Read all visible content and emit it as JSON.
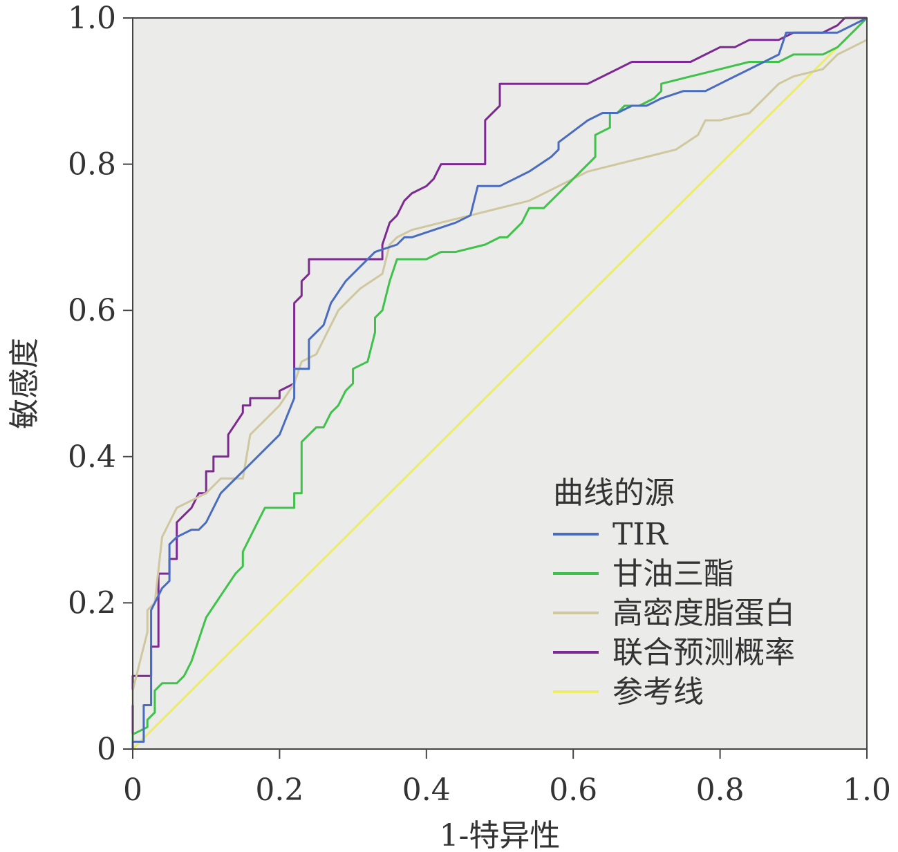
{
  "chart_data": {
    "type": "line",
    "title": "",
    "xlabel": "1-特异性",
    "ylabel": "敏感度",
    "xlim": [
      0,
      1
    ],
    "ylim": [
      0,
      1
    ],
    "x_ticks": [
      "0",
      "0.2",
      "0.4",
      "0.6",
      "0.8",
      "1.0"
    ],
    "y_ticks": [
      "0",
      "0.2",
      "0.4",
      "0.6",
      "0.8",
      "1.0"
    ],
    "grid": false,
    "background_color": "#ebebea",
    "legend": {
      "title": "曲线的源",
      "placement": "bottom-right"
    },
    "series": [
      {
        "name": "TIR",
        "color": "#4a6cc0",
        "x": [
          0,
          0,
          0.015,
          0.015,
          0.025,
          0.025,
          0.035,
          0.04,
          0.05,
          0.05,
          0.06,
          0.08,
          0.09,
          0.1,
          0.12,
          0.14,
          0.16,
          0.18,
          0.2,
          0.22,
          0.22,
          0.24,
          0.24,
          0.26,
          0.27,
          0.29,
          0.31,
          0.33,
          0.36,
          0.37,
          0.38,
          0.41,
          0.44,
          0.46,
          0.47,
          0.48,
          0.5,
          0.52,
          0.54,
          0.57,
          0.58,
          0.58,
          0.62,
          0.64,
          0.66,
          0.68,
          0.7,
          0.72,
          0.75,
          0.78,
          0.8,
          0.82,
          0.84,
          0.86,
          0.88,
          0.89,
          0.9,
          0.92,
          0.96,
          0.98,
          1.0
        ],
        "y": [
          0,
          0.01,
          0.01,
          0.06,
          0.06,
          0.19,
          0.21,
          0.22,
          0.23,
          0.28,
          0.29,
          0.3,
          0.3,
          0.31,
          0.35,
          0.37,
          0.39,
          0.41,
          0.43,
          0.48,
          0.52,
          0.52,
          0.56,
          0.58,
          0.61,
          0.64,
          0.66,
          0.68,
          0.69,
          0.7,
          0.7,
          0.71,
          0.72,
          0.73,
          0.77,
          0.77,
          0.77,
          0.78,
          0.79,
          0.81,
          0.82,
          0.83,
          0.86,
          0.87,
          0.87,
          0.88,
          0.88,
          0.89,
          0.9,
          0.9,
          0.91,
          0.92,
          0.93,
          0.94,
          0.95,
          0.98,
          0.98,
          0.98,
          0.98,
          0.99,
          1.0
        ]
      },
      {
        "name": "甘油三酯",
        "color": "#3fc24a",
        "x": [
          0,
          0,
          0.02,
          0.02,
          0.03,
          0.03,
          0.04,
          0.06,
          0.07,
          0.08,
          0.09,
          0.1,
          0.12,
          0.14,
          0.15,
          0.15,
          0.16,
          0.17,
          0.18,
          0.2,
          0.22,
          0.22,
          0.23,
          0.23,
          0.25,
          0.26,
          0.27,
          0.28,
          0.29,
          0.3,
          0.3,
          0.32,
          0.33,
          0.33,
          0.34,
          0.35,
          0.36,
          0.37,
          0.4,
          0.42,
          0.44,
          0.48,
          0.5,
          0.51,
          0.53,
          0.54,
          0.56,
          0.58,
          0.6,
          0.61,
          0.63,
          0.63,
          0.65,
          0.65,
          0.66,
          0.67,
          0.69,
          0.71,
          0.72,
          0.72,
          0.76,
          0.8,
          0.84,
          0.88,
          0.9,
          0.94,
          0.96,
          0.98,
          1.0
        ],
        "y": [
          0,
          0.02,
          0.03,
          0.04,
          0.05,
          0.08,
          0.09,
          0.09,
          0.1,
          0.12,
          0.15,
          0.18,
          0.21,
          0.24,
          0.25,
          0.27,
          0.29,
          0.31,
          0.33,
          0.33,
          0.33,
          0.35,
          0.35,
          0.42,
          0.44,
          0.44,
          0.46,
          0.47,
          0.49,
          0.5,
          0.52,
          0.53,
          0.57,
          0.59,
          0.6,
          0.64,
          0.67,
          0.67,
          0.67,
          0.68,
          0.68,
          0.69,
          0.7,
          0.7,
          0.72,
          0.74,
          0.74,
          0.76,
          0.78,
          0.79,
          0.81,
          0.84,
          0.85,
          0.87,
          0.87,
          0.88,
          0.88,
          0.89,
          0.9,
          0.91,
          0.92,
          0.93,
          0.94,
          0.94,
          0.95,
          0.95,
          0.96,
          0.98,
          1.0
        ]
      },
      {
        "name": "高密度脂蛋白",
        "color": "#cfc79d",
        "x": [
          0,
          0,
          0.01,
          0.02,
          0.02,
          0.03,
          0.04,
          0.05,
          0.06,
          0.08,
          0.1,
          0.12,
          0.15,
          0.16,
          0.17,
          0.18,
          0.2,
          0.22,
          0.23,
          0.25,
          0.26,
          0.27,
          0.28,
          0.29,
          0.3,
          0.31,
          0.34,
          0.35,
          0.36,
          0.38,
          0.42,
          0.46,
          0.5,
          0.54,
          0.58,
          0.62,
          0.66,
          0.7,
          0.74,
          0.77,
          0.78,
          0.8,
          0.84,
          0.86,
          0.87,
          0.88,
          0.9,
          0.94,
          0.96,
          0.98,
          1.0
        ],
        "y": [
          0.06,
          0.08,
          0.12,
          0.16,
          0.19,
          0.2,
          0.29,
          0.31,
          0.33,
          0.34,
          0.35,
          0.37,
          0.37,
          0.43,
          0.44,
          0.45,
          0.47,
          0.5,
          0.53,
          0.54,
          0.56,
          0.58,
          0.6,
          0.61,
          0.62,
          0.63,
          0.65,
          0.69,
          0.7,
          0.71,
          0.72,
          0.73,
          0.74,
          0.75,
          0.77,
          0.79,
          0.8,
          0.81,
          0.82,
          0.84,
          0.86,
          0.86,
          0.87,
          0.89,
          0.9,
          0.91,
          0.92,
          0.93,
          0.95,
          0.96,
          0.97
        ]
      },
      {
        "name": "联合预测概率",
        "color": "#7c2a92",
        "x": [
          0,
          0,
          0.025,
          0.025,
          0.035,
          0.035,
          0.05,
          0.05,
          0.06,
          0.06,
          0.07,
          0.08,
          0.09,
          0.1,
          0.1,
          0.11,
          0.11,
          0.13,
          0.13,
          0.15,
          0.15,
          0.16,
          0.16,
          0.18,
          0.19,
          0.2,
          0.2,
          0.22,
          0.22,
          0.23,
          0.23,
          0.24,
          0.24,
          0.32,
          0.34,
          0.34,
          0.35,
          0.36,
          0.37,
          0.38,
          0.4,
          0.41,
          0.42,
          0.44,
          0.48,
          0.48,
          0.5,
          0.5,
          0.52,
          0.6,
          0.62,
          0.64,
          0.66,
          0.68,
          0.7,
          0.72,
          0.74,
          0.76,
          0.78,
          0.8,
          0.82,
          0.84,
          0.86,
          0.88,
          0.9,
          0.92,
          0.94,
          0.96,
          0.97,
          0.98,
          1.0
        ],
        "y": [
          0,
          0.1,
          0.1,
          0.14,
          0.14,
          0.24,
          0.24,
          0.26,
          0.26,
          0.31,
          0.32,
          0.33,
          0.35,
          0.35,
          0.38,
          0.38,
          0.4,
          0.4,
          0.43,
          0.46,
          0.47,
          0.47,
          0.48,
          0.48,
          0.48,
          0.48,
          0.49,
          0.5,
          0.61,
          0.62,
          0.64,
          0.65,
          0.67,
          0.67,
          0.67,
          0.69,
          0.72,
          0.73,
          0.75,
          0.76,
          0.77,
          0.78,
          0.8,
          0.8,
          0.8,
          0.86,
          0.88,
          0.91,
          0.91,
          0.91,
          0.91,
          0.92,
          0.93,
          0.94,
          0.94,
          0.94,
          0.94,
          0.94,
          0.95,
          0.96,
          0.96,
          0.97,
          0.97,
          0.97,
          0.98,
          0.98,
          0.98,
          0.99,
          1.0,
          1.0,
          1.0
        ]
      },
      {
        "name": "参考线",
        "color": "#ecec67",
        "x": [
          0,
          1
        ],
        "y": [
          0,
          1
        ]
      }
    ]
  }
}
